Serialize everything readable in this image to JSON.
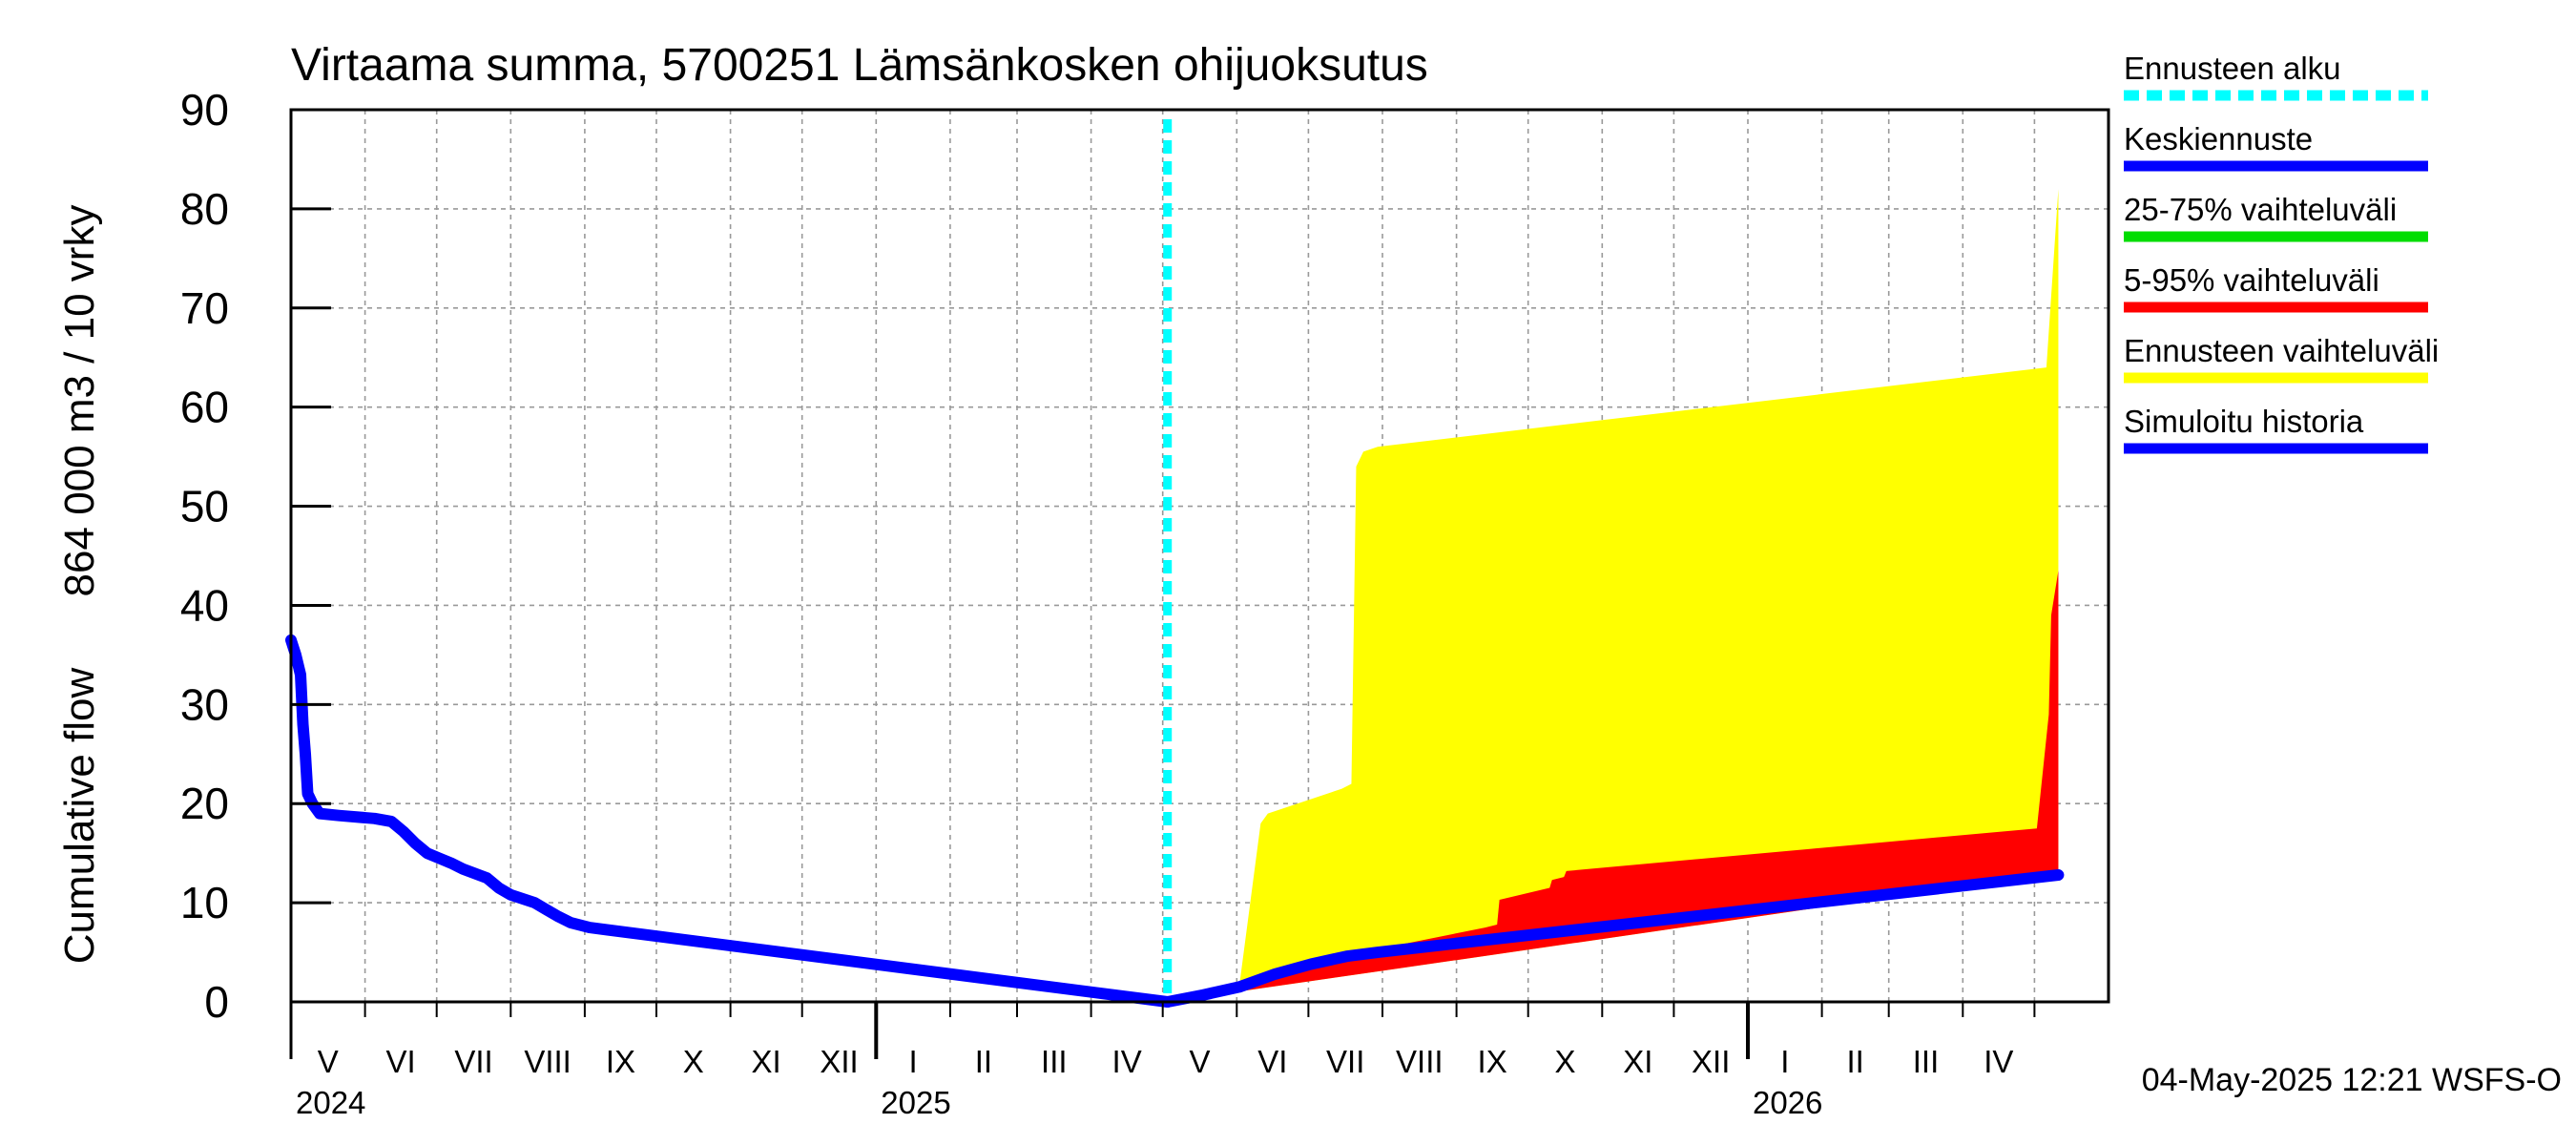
{
  "chart_data": {
    "type": "area",
    "title": "Virtaama summa, 5700251 Lämsänkosken ohijuoksutus",
    "ylabel_line1": "Cumulative flow",
    "ylabel_line2": "864 000 m3 / 10 vrky",
    "ylim": [
      0,
      90
    ],
    "yticks": [
      0,
      10,
      20,
      30,
      40,
      50,
      60,
      70,
      80,
      90
    ],
    "x_start": "2024-05-01",
    "x_end": "2026-05-31",
    "months": [
      "V",
      "VI",
      "VII",
      "VIII",
      "IX",
      "X",
      "XI",
      "XII",
      "I",
      "II",
      "III",
      "IV",
      "V",
      "VI",
      "VII",
      "VIII",
      "IX",
      "X",
      "XI",
      "XII",
      "I",
      "II",
      "III",
      "IV"
    ],
    "years": [
      {
        "label": "2024",
        "month_index": 0
      },
      {
        "label": "2025",
        "month_index": 8
      },
      {
        "label": "2026",
        "month_index": 20
      }
    ],
    "forecast_start_day": 367,
    "series": [
      {
        "name": "Ennusteen vaihteluväli",
        "color": "#ffff00",
        "kind": "band",
        "upper": [
          [
            367,
            0
          ],
          [
            382,
            0.5
          ],
          [
            397,
            1.5
          ],
          [
            406,
            18
          ],
          [
            409,
            19
          ],
          [
            440,
            21.5
          ],
          [
            444,
            22
          ],
          [
            446,
            54
          ],
          [
            449,
            55.5
          ],
          [
            455,
            56
          ],
          [
            735,
            64
          ],
          [
            740,
            82
          ]
        ],
        "lower": [
          [
            367,
            0
          ],
          [
            740,
            13
          ]
        ]
      },
      {
        "name": "5-95% vaihteluväli",
        "color": "#ff0000",
        "kind": "band",
        "upper": [
          [
            367,
            0
          ],
          [
            455,
            5
          ],
          [
            465,
            5.8
          ],
          [
            500,
            7.5
          ],
          [
            505,
            7.8
          ],
          [
            506,
            10.3
          ],
          [
            527,
            11.5
          ],
          [
            528,
            12.3
          ],
          [
            533,
            12.6
          ],
          [
            534,
            13.2
          ],
          [
            731,
            17.5
          ],
          [
            736,
            29
          ],
          [
            737,
            39
          ],
          [
            740,
            43.5
          ]
        ],
        "lower": [
          [
            367,
            0
          ],
          [
            740,
            13
          ]
        ]
      },
      {
        "name": "25-75% vaihteluväli",
        "color": "#00dd00",
        "kind": "band",
        "upper": [
          [
            367,
            0
          ],
          [
            740,
            13
          ]
        ],
        "lower": [
          [
            367,
            0
          ],
          [
            740,
            13
          ]
        ]
      },
      {
        "name": "Keskiennuste",
        "color": "#0000ff",
        "kind": "line",
        "points": [
          [
            367,
            0
          ],
          [
            382,
            0.7
          ],
          [
            397,
            1.5
          ],
          [
            412,
            2.8
          ],
          [
            427,
            3.8
          ],
          [
            442,
            4.6
          ],
          [
            455,
            5.0
          ],
          [
            740,
            12.8
          ]
        ]
      },
      {
        "name": "Simuloitu historia",
        "color": "#0000ff",
        "kind": "line",
        "points": [
          [
            0,
            36.5
          ],
          [
            2,
            35
          ],
          [
            4,
            33
          ],
          [
            5,
            28
          ],
          [
            6,
            25
          ],
          [
            7,
            21
          ],
          [
            9,
            20
          ],
          [
            12,
            19
          ],
          [
            20,
            18.8
          ],
          [
            35,
            18.5
          ],
          [
            42,
            18.2
          ],
          [
            47,
            17.2
          ],
          [
            52,
            16
          ],
          [
            57,
            15
          ],
          [
            62,
            14.5
          ],
          [
            67,
            14
          ],
          [
            72,
            13.4
          ],
          [
            82,
            12.5
          ],
          [
            87,
            11.5
          ],
          [
            92,
            10.8
          ],
          [
            102,
            10.0
          ],
          [
            107,
            9.3
          ],
          [
            112,
            8.6
          ],
          [
            117,
            8.0
          ],
          [
            125,
            7.5
          ],
          [
            367,
            0
          ]
        ]
      }
    ],
    "legend": [
      {
        "label": "Ennusteen alku",
        "color": "#00ffff",
        "dashed": true
      },
      {
        "label": "Keskiennuste",
        "color": "#0000ff",
        "dashed": false
      },
      {
        "label": "25-75% vaihteluväli",
        "color": "#00dd00",
        "dashed": false
      },
      {
        "label": "5-95% vaihteluväli",
        "color": "#ff0000",
        "dashed": false
      },
      {
        "label": "Ennusteen vaihteluväli",
        "color": "#ffff00",
        "dashed": false
      },
      {
        "label": "Simuloitu historia",
        "color": "#0000ff",
        "dashed": false
      }
    ],
    "legend_position": "right",
    "grid": true,
    "timestamp": "04-May-2025 12:21 WSFS-O"
  }
}
